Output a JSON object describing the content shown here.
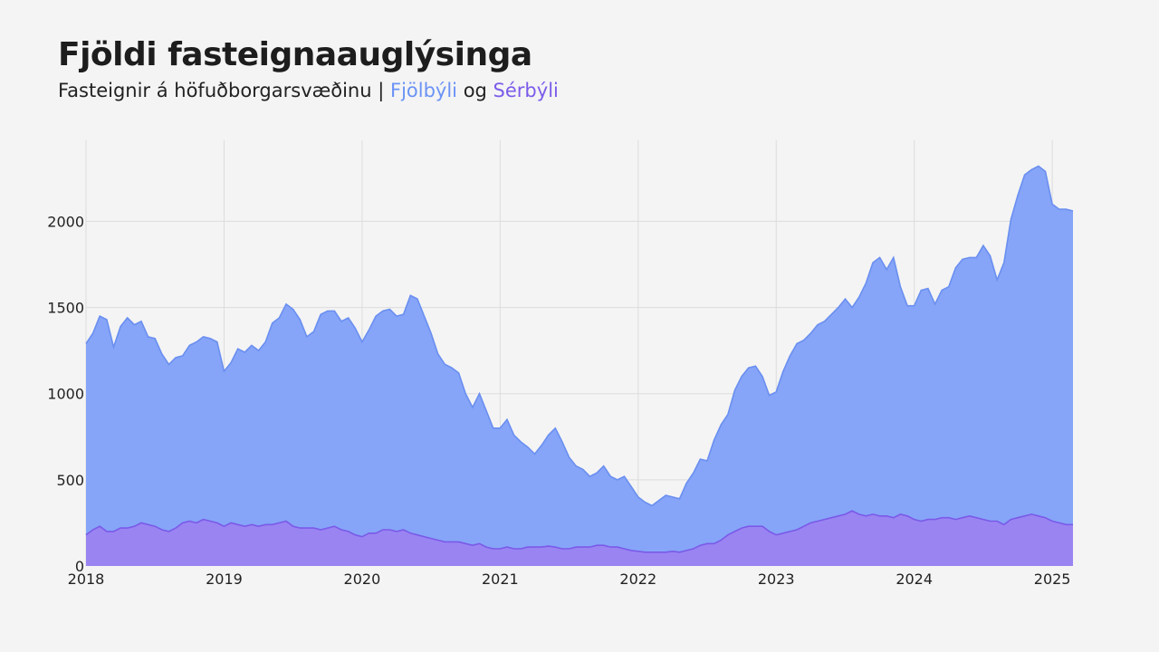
{
  "title": "Fjöldi fasteignaauglýsinga",
  "subtitle": {
    "prefix": "Fasteignir á höfuðborgarsvæðinu | ",
    "series1": "Fjölbýli",
    "connector": " og ",
    "series2": "Sérbýli"
  },
  "colors": {
    "fjolbyli_fill": "#86a5f8",
    "fjolbyli_line": "#6a8ff0",
    "serbyli_fill": "#9a84f2",
    "serbyli_line": "#7a5ae8",
    "background": "#f4f4f4",
    "grid": "#dcdcdc"
  },
  "chart_data": {
    "type": "area",
    "title": "Fjöldi fasteignaauglýsinga",
    "subtitle": "Fasteignir á höfuðborgarsvæðinu | Fjölbýli og Sérbýli",
    "xlabel": "",
    "ylabel": "",
    "xlim": [
      2018.0,
      2025.15
    ],
    "ylim": [
      0,
      2470
    ],
    "x_ticks": [
      2018,
      2019,
      2020,
      2021,
      2022,
      2023,
      2024,
      2025
    ],
    "y_ticks": [
      0,
      500,
      1000,
      1500,
      2000
    ],
    "grid": true,
    "legend": "none",
    "series": [
      {
        "name": "Fjölbýli",
        "x": [
          2018.0,
          2018.05,
          2018.1,
          2018.15,
          2018.2,
          2018.25,
          2018.3,
          2018.35,
          2018.4,
          2018.45,
          2018.5,
          2018.55,
          2018.6,
          2018.65,
          2018.7,
          2018.75,
          2018.8,
          2018.85,
          2018.9,
          2018.95,
          2019.0,
          2019.05,
          2019.1,
          2019.15,
          2019.2,
          2019.25,
          2019.3,
          2019.35,
          2019.4,
          2019.45,
          2019.5,
          2019.55,
          2019.6,
          2019.65,
          2019.7,
          2019.75,
          2019.8,
          2019.85,
          2019.9,
          2019.95,
          2020.0,
          2020.05,
          2020.1,
          2020.15,
          2020.2,
          2020.25,
          2020.3,
          2020.35,
          2020.4,
          2020.45,
          2020.5,
          2020.55,
          2020.6,
          2020.65,
          2020.7,
          2020.75,
          2020.8,
          2020.85,
          2020.9,
          2020.95,
          2021.0,
          2021.05,
          2021.1,
          2021.15,
          2021.2,
          2021.25,
          2021.3,
          2021.35,
          2021.4,
          2021.45,
          2021.5,
          2021.55,
          2021.6,
          2021.65,
          2021.7,
          2021.75,
          2021.8,
          2021.85,
          2021.9,
          2021.95,
          2022.0,
          2022.05,
          2022.1,
          2022.15,
          2022.2,
          2022.25,
          2022.3,
          2022.35,
          2022.4,
          2022.45,
          2022.5,
          2022.55,
          2022.6,
          2022.65,
          2022.7,
          2022.75,
          2022.8,
          2022.85,
          2022.9,
          2022.95,
          2023.0,
          2023.05,
          2023.1,
          2023.15,
          2023.2,
          2023.25,
          2023.3,
          2023.35,
          2023.4,
          2023.45,
          2023.5,
          2023.55,
          2023.6,
          2023.65,
          2023.7,
          2023.75,
          2023.8,
          2023.85,
          2023.9,
          2023.95,
          2024.0,
          2024.05,
          2024.1,
          2024.15,
          2024.2,
          2024.25,
          2024.3,
          2024.35,
          2024.4,
          2024.45,
          2024.5,
          2024.55,
          2024.6,
          2024.65,
          2024.7,
          2024.75,
          2024.8,
          2024.85,
          2024.9,
          2024.95,
          2025.0,
          2025.05,
          2025.1,
          2025.15
        ],
        "values": [
          1290,
          1350,
          1450,
          1430,
          1270,
          1390,
          1440,
          1400,
          1420,
          1330,
          1320,
          1230,
          1170,
          1210,
          1220,
          1280,
          1300,
          1330,
          1320,
          1300,
          1130,
          1180,
          1260,
          1240,
          1280,
          1250,
          1300,
          1410,
          1440,
          1520,
          1490,
          1430,
          1330,
          1360,
          1460,
          1480,
          1480,
          1420,
          1440,
          1380,
          1300,
          1370,
          1450,
          1480,
          1490,
          1450,
          1460,
          1570,
          1550,
          1450,
          1350,
          1230,
          1170,
          1150,
          1120,
          1000,
          920,
          1000,
          900,
          800,
          800,
          850,
          760,
          720,
          690,
          650,
          700,
          760,
          800,
          720,
          630,
          580,
          560,
          520,
          540,
          580,
          520,
          500,
          520,
          460,
          400,
          370,
          350,
          380,
          410,
          400,
          390,
          480,
          540,
          620,
          610,
          730,
          820,
          880,
          1020,
          1100,
          1150,
          1160,
          1100,
          990,
          1010,
          1130,
          1220,
          1290,
          1310,
          1350,
          1400,
          1420,
          1460,
          1500,
          1550,
          1500,
          1560,
          1640,
          1760,
          1790,
          1720,
          1790,
          1620,
          1510,
          1510,
          1600,
          1610,
          1520,
          1600,
          1620,
          1730,
          1780,
          1790,
          1790,
          1860,
          1800,
          1660,
          1760,
          2010,
          2150,
          2270,
          2300,
          2320,
          2290,
          2100,
          2070,
          2070,
          2060
        ]
      },
      {
        "name": "Sérbýli",
        "x": [
          2018.0,
          2018.05,
          2018.1,
          2018.15,
          2018.2,
          2018.25,
          2018.3,
          2018.35,
          2018.4,
          2018.45,
          2018.5,
          2018.55,
          2018.6,
          2018.65,
          2018.7,
          2018.75,
          2018.8,
          2018.85,
          2018.9,
          2018.95,
          2019.0,
          2019.05,
          2019.1,
          2019.15,
          2019.2,
          2019.25,
          2019.3,
          2019.35,
          2019.4,
          2019.45,
          2019.5,
          2019.55,
          2019.6,
          2019.65,
          2019.7,
          2019.75,
          2019.8,
          2019.85,
          2019.9,
          2019.95,
          2020.0,
          2020.05,
          2020.1,
          2020.15,
          2020.2,
          2020.25,
          2020.3,
          2020.35,
          2020.4,
          2020.45,
          2020.5,
          2020.55,
          2020.6,
          2020.65,
          2020.7,
          2020.75,
          2020.8,
          2020.85,
          2020.9,
          2020.95,
          2021.0,
          2021.05,
          2021.1,
          2021.15,
          2021.2,
          2021.25,
          2021.3,
          2021.35,
          2021.4,
          2021.45,
          2021.5,
          2021.55,
          2021.6,
          2021.65,
          2021.7,
          2021.75,
          2021.8,
          2021.85,
          2021.9,
          2021.95,
          2022.0,
          2022.05,
          2022.1,
          2022.15,
          2022.2,
          2022.25,
          2022.3,
          2022.35,
          2022.4,
          2022.45,
          2022.5,
          2022.55,
          2022.6,
          2022.65,
          2022.7,
          2022.75,
          2022.8,
          2022.85,
          2022.9,
          2022.95,
          2023.0,
          2023.05,
          2023.1,
          2023.15,
          2023.2,
          2023.25,
          2023.3,
          2023.35,
          2023.4,
          2023.45,
          2023.5,
          2023.55,
          2023.6,
          2023.65,
          2023.7,
          2023.75,
          2023.8,
          2023.85,
          2023.9,
          2023.95,
          2024.0,
          2024.05,
          2024.1,
          2024.15,
          2024.2,
          2024.25,
          2024.3,
          2024.35,
          2024.4,
          2024.45,
          2024.5,
          2024.55,
          2024.6,
          2024.65,
          2024.7,
          2024.75,
          2024.8,
          2024.85,
          2024.9,
          2024.95,
          2025.0,
          2025.05,
          2025.1,
          2025.15
        ],
        "values": [
          180,
          210,
          230,
          200,
          200,
          220,
          220,
          230,
          250,
          240,
          230,
          210,
          200,
          220,
          250,
          260,
          250,
          270,
          260,
          250,
          230,
          250,
          240,
          230,
          240,
          230,
          240,
          240,
          250,
          260,
          230,
          220,
          220,
          220,
          210,
          220,
          230,
          210,
          200,
          180,
          170,
          190,
          190,
          210,
          210,
          200,
          210,
          190,
          180,
          170,
          160,
          150,
          140,
          140,
          140,
          130,
          120,
          130,
          110,
          100,
          100,
          110,
          100,
          100,
          110,
          110,
          110,
          115,
          110,
          100,
          100,
          110,
          110,
          110,
          120,
          120,
          110,
          110,
          100,
          90,
          85,
          80,
          80,
          80,
          80,
          85,
          80,
          90,
          100,
          120,
          130,
          130,
          150,
          180,
          200,
          220,
          230,
          230,
          230,
          200,
          180,
          190,
          200,
          210,
          230,
          250,
          260,
          270,
          280,
          290,
          300,
          320,
          300,
          290,
          300,
          290,
          290,
          280,
          300,
          290,
          270,
          260,
          270,
          270,
          280,
          280,
          270,
          280,
          290,
          280,
          270,
          260,
          260,
          240,
          270,
          280,
          290,
          300,
          290,
          280,
          260,
          250,
          240,
          240
        ]
      }
    ]
  }
}
